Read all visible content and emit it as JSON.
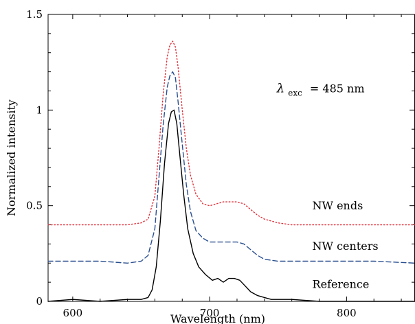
{
  "chart_data": {
    "type": "line",
    "title": "",
    "xlabel": "Wavelength (nm)",
    "ylabel": "Normalized intensity",
    "xlim": [
      582,
      850
    ],
    "ylim": [
      0,
      1.5
    ],
    "x_ticks": [
      600,
      700,
      800
    ],
    "y_ticks": [
      0,
      0.5,
      1,
      1.5
    ],
    "x_tick_labels": [
      "600",
      "700",
      "800"
    ],
    "y_tick_labels": [
      "0",
      "0.5",
      "1",
      "1.5"
    ],
    "grid": false,
    "annotation": {
      "symbol": "λ",
      "subscript": "exc",
      "text": "= 485 nm"
    },
    "series": [
      {
        "name": "NW ends",
        "color": "#e0303a",
        "style": "dotted",
        "x": [
          582,
          600,
          620,
          640,
          650,
          655,
          660,
          663,
          666,
          669,
          671,
          673,
          675,
          677,
          680,
          683,
          686,
          690,
          695,
          700,
          705,
          710,
          715,
          720,
          725,
          730,
          735,
          740,
          750,
          760,
          780,
          800,
          820,
          850
        ],
        "y": [
          0.4,
          0.4,
          0.4,
          0.4,
          0.41,
          0.43,
          0.55,
          0.8,
          1.08,
          1.28,
          1.34,
          1.36,
          1.33,
          1.22,
          1.0,
          0.8,
          0.66,
          0.56,
          0.51,
          0.5,
          0.51,
          0.52,
          0.52,
          0.52,
          0.51,
          0.48,
          0.45,
          0.43,
          0.41,
          0.4,
          0.4,
          0.4,
          0.4,
          0.4
        ]
      },
      {
        "name": "NW centers",
        "color": "#2a4f8f",
        "style": "dashed",
        "x": [
          582,
          600,
          620,
          640,
          650,
          655,
          660,
          663,
          666,
          669,
          671,
          673,
          675,
          677,
          680,
          683,
          686,
          690,
          695,
          700,
          705,
          710,
          715,
          720,
          725,
          730,
          735,
          740,
          750,
          760,
          780,
          800,
          820,
          850
        ],
        "y": [
          0.21,
          0.21,
          0.21,
          0.2,
          0.21,
          0.24,
          0.38,
          0.65,
          0.92,
          1.12,
          1.18,
          1.2,
          1.17,
          1.04,
          0.82,
          0.61,
          0.47,
          0.37,
          0.33,
          0.31,
          0.31,
          0.31,
          0.31,
          0.31,
          0.3,
          0.27,
          0.24,
          0.22,
          0.21,
          0.21,
          0.21,
          0.21,
          0.21,
          0.2
        ]
      },
      {
        "name": "Reference",
        "color": "#000000",
        "style": "solid",
        "x": [
          582,
          600,
          620,
          640,
          650,
          655,
          658,
          661,
          664,
          667,
          670,
          672,
          674,
          676,
          678,
          681,
          684,
          688,
          692,
          697,
          702,
          706,
          710,
          714,
          718,
          722,
          726,
          730,
          735,
          740,
          745,
          750,
          760,
          780,
          800,
          820,
          850
        ],
        "y": [
          0.0,
          0.01,
          0.0,
          0.01,
          0.01,
          0.02,
          0.06,
          0.18,
          0.42,
          0.72,
          0.93,
          0.99,
          1.0,
          0.93,
          0.78,
          0.56,
          0.38,
          0.25,
          0.18,
          0.14,
          0.11,
          0.12,
          0.1,
          0.12,
          0.12,
          0.11,
          0.08,
          0.05,
          0.03,
          0.02,
          0.01,
          0.01,
          0.01,
          0.0,
          0.0,
          0.0,
          0.0
        ]
      }
    ],
    "labels": [
      {
        "series": "NW ends",
        "text": "NW ends",
        "x": 775,
        "y": 0.48
      },
      {
        "series": "NW centers",
        "text": "NW centers",
        "x": 775,
        "y": 0.27
      },
      {
        "series": "Reference",
        "text": "Reference",
        "x": 775,
        "y": 0.07
      }
    ]
  }
}
